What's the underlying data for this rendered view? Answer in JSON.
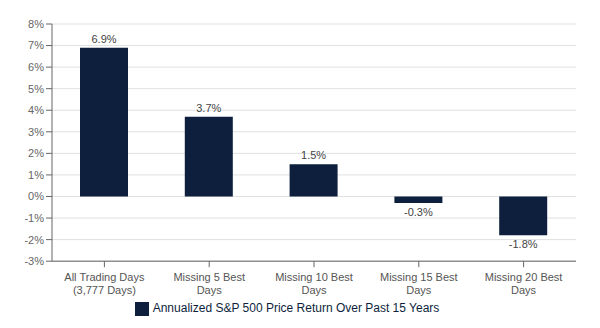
{
  "chart_data": {
    "type": "bar",
    "categories": [
      "All Trading Days\n(3,777 Days)",
      "Missing 5 Best\nDays",
      "Missing 10 Best\nDays",
      "Missing 15 Best\nDays",
      "Missing 20 Best\nDays"
    ],
    "series": [
      {
        "name": "Annualized S&P 500 Price Return Over Past 15 Years",
        "color": "#0d1f3c",
        "values": [
          6.9,
          3.7,
          1.5,
          -0.3,
          -1.8
        ],
        "value_labels": [
          "6.9%",
          "3.7%",
          "1.5%",
          "-0.3%",
          "-1.8%"
        ]
      }
    ],
    "ylim": [
      -3,
      8
    ],
    "yticks": [
      {
        "value": -3,
        "label": "-3%"
      },
      {
        "value": -2,
        "label": "-2%"
      },
      {
        "value": -1,
        "label": "-1%"
      },
      {
        "value": 0,
        "label": "0%"
      },
      {
        "value": 1,
        "label": "1%"
      },
      {
        "value": 2,
        "label": "2%"
      },
      {
        "value": 3,
        "label": "3%"
      },
      {
        "value": 4,
        "label": "4%"
      },
      {
        "value": 5,
        "label": "5%"
      },
      {
        "value": 6,
        "label": "6%"
      },
      {
        "value": 7,
        "label": "7%"
      },
      {
        "value": 8,
        "label": "8%"
      }
    ],
    "grid": true,
    "legend": "bottom",
    "data_labels": true
  }
}
